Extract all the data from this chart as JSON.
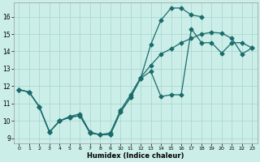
{
  "xlabel": "Humidex (Indice chaleur)",
  "bg_color": "#cceee8",
  "grid_color": "#aad8d2",
  "line_color": "#1a6b6b",
  "xlim": [
    -0.5,
    23.5
  ],
  "ylim": [
    8.7,
    16.8
  ],
  "xticks": [
    0,
    1,
    2,
    3,
    4,
    5,
    6,
    7,
    8,
    9,
    10,
    11,
    12,
    13,
    14,
    15,
    16,
    17,
    18,
    19,
    20,
    21,
    22,
    23
  ],
  "yticks": [
    9,
    10,
    11,
    12,
    13,
    14,
    15,
    16
  ],
  "line1_x": [
    0,
    1,
    2,
    3,
    4,
    5,
    6,
    7,
    8,
    9,
    10,
    11,
    12,
    13,
    14,
    15,
    16,
    17,
    18,
    19,
    20,
    21,
    22,
    23
  ],
  "line1_y": [
    11.8,
    11.65,
    10.8,
    9.35,
    10.0,
    10.2,
    10.3,
    9.3,
    9.2,
    9.2,
    10.5,
    11.35,
    12.45,
    12.85,
    11.4,
    11.5,
    11.5,
    15.3,
    14.5,
    14.5,
    13.9,
    14.5,
    14.5,
    14.2
  ],
  "line2_x": [
    0,
    1,
    2,
    3,
    4,
    5,
    6,
    7,
    8,
    9,
    10,
    11,
    12,
    13,
    14,
    15,
    16,
    17,
    18
  ],
  "line2_y": [
    11.8,
    11.65,
    10.8,
    9.35,
    10.0,
    10.2,
    10.3,
    9.3,
    9.2,
    9.2,
    10.5,
    11.35,
    12.45,
    14.4,
    15.8,
    16.5,
    16.5,
    16.1,
    16.0
  ],
  "line3_x": [
    0,
    1,
    2,
    3,
    4,
    5,
    6,
    7,
    8,
    9,
    10,
    11,
    12,
    13,
    14,
    15,
    16,
    17,
    18,
    19,
    20,
    21,
    22,
    23
  ],
  "line3_y": [
    11.8,
    11.65,
    10.8,
    9.35,
    10.0,
    10.25,
    10.4,
    9.35,
    9.2,
    9.3,
    10.6,
    11.5,
    12.5,
    13.2,
    13.85,
    14.15,
    14.5,
    14.75,
    15.0,
    15.1,
    15.05,
    14.75,
    13.85,
    14.2
  ]
}
